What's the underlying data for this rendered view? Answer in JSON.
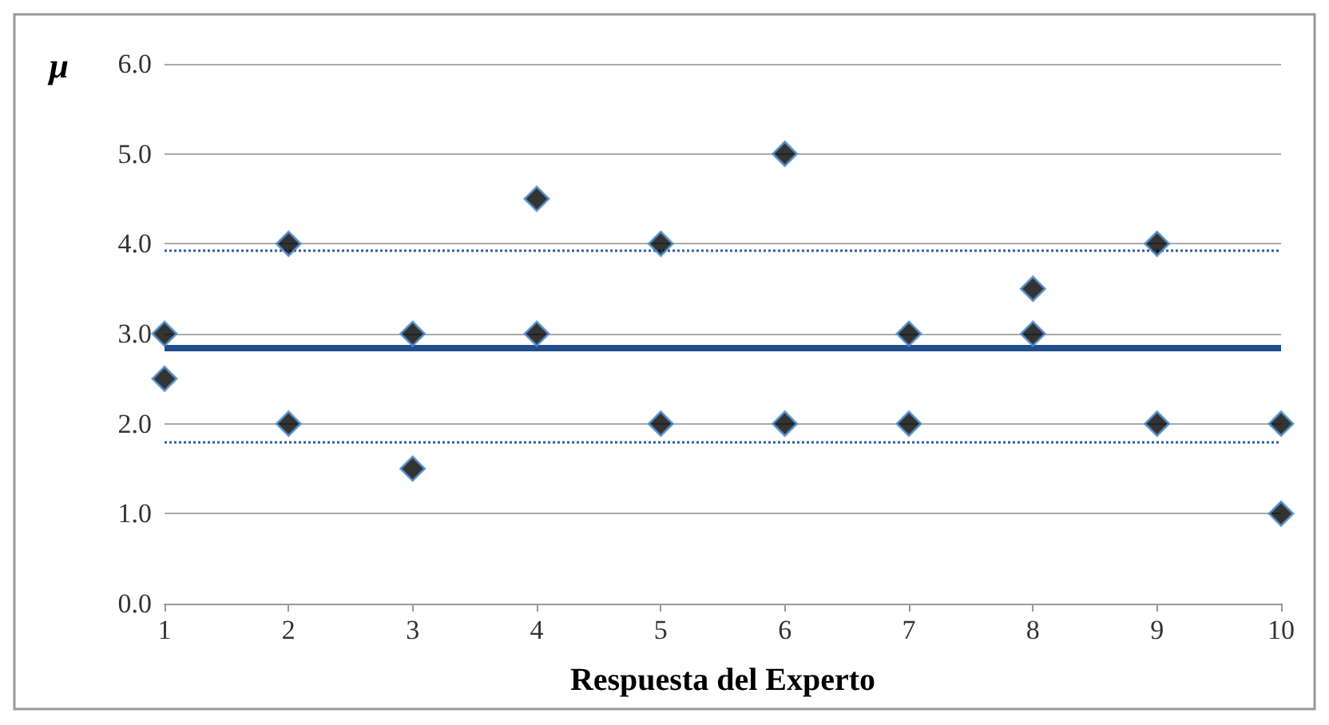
{
  "chart_data": {
    "type": "scatter",
    "xlabel": "Respuesta del Experto",
    "ylabel": "μ",
    "x": [
      1,
      1,
      2,
      2,
      3,
      3,
      4,
      4,
      5,
      5,
      6,
      6,
      7,
      7,
      8,
      8,
      9,
      9,
      10,
      10
    ],
    "series": [
      {
        "color": "#000000",
        "values": [
          3,
          2.5,
          4,
          2,
          3,
          1.5,
          4.5,
          3,
          4,
          2,
          5,
          2,
          3,
          2,
          3.5,
          3,
          4,
          2,
          2,
          1
        ]
      }
    ],
    "xlim": [
      1,
      10
    ],
    "xticks": [
      1,
      2,
      3,
      4,
      5,
      6,
      7,
      8,
      9,
      10
    ],
    "ylim": [
      0,
      6
    ],
    "yticks": [
      {
        "value": 0,
        "label": "0.0"
      },
      {
        "value": 1,
        "label": "1.0"
      },
      {
        "value": 2,
        "label": "2.0"
      },
      {
        "value": 3,
        "label": "3.0"
      },
      {
        "value": 4,
        "label": "4.0"
      },
      {
        "value": 5,
        "label": "5.0"
      },
      {
        "value": 6,
        "label": "6.0"
      }
    ],
    "ref_lines": [
      {
        "axis": "y",
        "value": 2.85,
        "color": "#1f4e8c",
        "line_style": "solid"
      },
      {
        "axis": "y",
        "value": 3.92,
        "color": "#2e5fa0",
        "line_style": "dotted"
      },
      {
        "axis": "y",
        "value": 1.8,
        "color": "#2e5fa0",
        "line_style": "dotted"
      }
    ],
    "grid": "y",
    "marker": "diamond"
  }
}
